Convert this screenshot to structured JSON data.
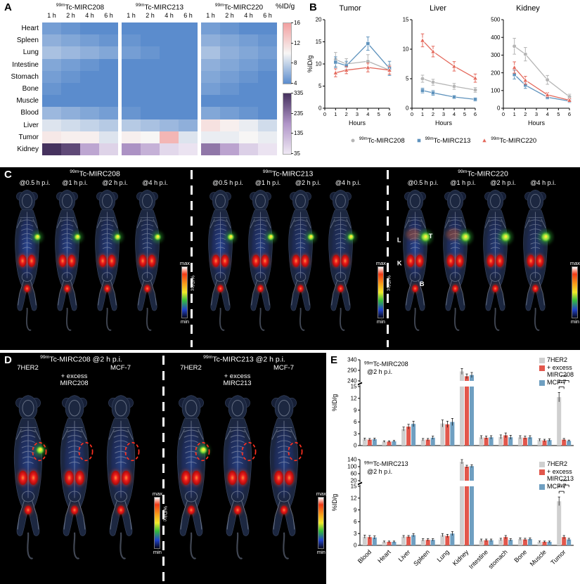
{
  "panels": {
    "A": {
      "label": "A"
    },
    "B": {
      "label": "B"
    },
    "C": {
      "label": "C"
    },
    "D": {
      "label": "D"
    },
    "E": {
      "label": "E"
    }
  },
  "colors": {
    "mirc208": "#b5b5b5",
    "mirc213": "#5f93bd",
    "mirc220": "#e4695c",
    "bar_gray": "#cfcfcf",
    "bar_red": "#e2574c",
    "bar_blue": "#6f9fc1",
    "heat_blue": "#5b8ccd",
    "heat_white": "#f7f6f5",
    "heat_pink": "#f2a0a0",
    "kid_light": "#efe9f4",
    "kid_mid": "#b095c8",
    "kid_dark": "#46325e"
  },
  "panelC": {
    "label": "C",
    "colorbar": {
      "top": "max",
      "bottom": "min",
      "unit": "%ID/cc"
    },
    "sections": [
      {
        "title": "99mTc-MIRC208",
        "timepoints": [
          "@0.5 h p.i.",
          "@1 h p.i.",
          "@2 h p.i.",
          "@4 h p.i."
        ]
      },
      {
        "title": "99mTc-MIRC213",
        "timepoints": [
          "@0.5 h p.i.",
          "@1 h p.i.",
          "@2 h p.i.",
          "@4 h p.i."
        ]
      },
      {
        "title": "99mTc-MIRC220",
        "timepoints": [
          "@0.5 h p.i.",
          "@1 h p.i.",
          "@2 h p.i.",
          "@4 h p.i."
        ],
        "annotations": [
          "L",
          "T",
          "K",
          "B"
        ]
      }
    ]
  },
  "panelD": {
    "label": "D",
    "colorbar": {
      "top": "max",
      "bottom": "min",
      "unit": "%ID/cc"
    },
    "sections": [
      {
        "title": "99mTc-MIRC208 @2 h p.i.",
        "columns": [
          "7HER2",
          "+ excess MIRC208",
          "MCF-7"
        ]
      },
      {
        "title": "99mTc-MIRC213 @2 h p.i.",
        "columns": [
          "7HER2",
          "+ excess MIRC213",
          "MCF-7"
        ]
      }
    ]
  },
  "chart_data": [
    {
      "id": "A-heatmap",
      "type": "heatmap",
      "unit": "%ID/g",
      "col_groups": [
        "99mTc-MIRC208",
        "99mTc-MIRC213",
        "99mTc-MIRC220"
      ],
      "timepoints": [
        "1 h",
        "2 h",
        "4 h",
        "6 h"
      ],
      "rows": [
        "Heart",
        "Spleen",
        "Lung",
        "Intestine",
        "Stomach",
        "Bone",
        "Muscle",
        "Blood",
        "Liver",
        "Tumor",
        "Kidney"
      ],
      "scale_main": {
        "min": 4,
        "max": 16,
        "ticks": [
          16,
          12,
          8,
          4
        ]
      },
      "scale_kidney": {
        "min": 35,
        "max": 335,
        "ticks": [
          335,
          235,
          135,
          35
        ]
      },
      "values": [
        [
          [
            5.0,
            4.5,
            4.0,
            3.5
          ],
          [
            4.0,
            3.5,
            3.0,
            2.5
          ],
          [
            5.0,
            4.5,
            4.0,
            3.5
          ]
        ],
        [
          [
            6.0,
            5.5,
            5.0,
            4.5
          ],
          [
            4.5,
            4.0,
            3.5,
            3.0
          ],
          [
            6.0,
            5.5,
            5.0,
            4.5
          ]
        ],
        [
          [
            7.0,
            6.5,
            6.0,
            5.5
          ],
          [
            5.0,
            4.5,
            4.0,
            3.5
          ],
          [
            7.0,
            6.0,
            5.5,
            5.0
          ]
        ],
        [
          [
            5.5,
            5.0,
            4.5,
            4.0
          ],
          [
            4.0,
            3.5,
            3.5,
            3.0
          ],
          [
            6.0,
            5.5,
            5.0,
            4.5
          ]
        ],
        [
          [
            5.0,
            4.5,
            4.0,
            4.0
          ],
          [
            3.5,
            3.5,
            3.0,
            3.0
          ],
          [
            5.5,
            5.0,
            4.5,
            4.0
          ]
        ],
        [
          [
            4.5,
            4.0,
            4.0,
            3.5
          ],
          [
            3.5,
            3.0,
            3.0,
            2.5
          ],
          [
            5.0,
            4.5,
            4.0,
            3.5
          ]
        ],
        [
          [
            4.0,
            3.5,
            3.5,
            3.0
          ],
          [
            3.0,
            2.5,
            2.5,
            2.0
          ],
          [
            4.0,
            3.5,
            3.0,
            3.0
          ]
        ],
        [
          [
            6.5,
            6.0,
            5.5,
            5.0
          ],
          [
            4.5,
            4.0,
            3.5,
            3.0
          ],
          [
            5.5,
            5.0,
            4.5,
            4.0
          ]
        ],
        [
          [
            9.0,
            8.5,
            8.0,
            7.5
          ],
          [
            7.5,
            7.0,
            6.5,
            6.0
          ],
          [
            11.5,
            10.5,
            9.5,
            8.5
          ]
        ],
        [
          [
            11.0,
            10.5,
            10.5,
            9.0
          ],
          [
            10.5,
            10.0,
            14.5,
            9.0
          ],
          [
            9.5,
            9.5,
            10.0,
            9.5
          ]
        ],
        [
          [
            335,
            300,
            155,
            75
          ],
          [
            190,
            135,
            65,
            45
          ],
          [
            230,
            160,
            80,
            45
          ]
        ]
      ]
    },
    {
      "id": "B-tumor",
      "type": "line",
      "title": "Tumor",
      "xlabel": "Hours",
      "ylabel": "%ID/g",
      "xlim": [
        0,
        6
      ],
      "xticks": [
        0,
        1,
        2,
        3,
        4,
        5,
        6
      ],
      "ylim": [
        0,
        20
      ],
      "yticks": [
        0,
        5,
        10,
        15,
        20
      ],
      "x": [
        1,
        2,
        4,
        6
      ],
      "series": [
        {
          "name": "99mTc-MIRC208",
          "marker": "circle",
          "color": "#b5b5b5",
          "values": [
            11.0,
            10.0,
            10.6,
            8.6
          ],
          "errors": [
            1.6,
            1.2,
            1.5,
            1.2
          ]
        },
        {
          "name": "99mTc-MIRC213",
          "marker": "square",
          "color": "#5f93bd",
          "values": [
            10.4,
            9.6,
            14.6,
            9.0
          ],
          "errors": [
            1.2,
            1.0,
            1.5,
            1.6
          ]
        },
        {
          "name": "99mTc-MIRC220",
          "marker": "triangle",
          "color": "#e4695c",
          "values": [
            8.0,
            8.6,
            9.2,
            8.6
          ],
          "errors": [
            0.9,
            0.8,
            1.0,
            0.9
          ]
        }
      ]
    },
    {
      "id": "B-liver",
      "type": "line",
      "title": "Liver",
      "xlabel": "Hours",
      "ylabel": "%ID/g",
      "xlim": [
        0,
        6
      ],
      "xticks": [
        0,
        1,
        2,
        3,
        4,
        5,
        6
      ],
      "ylim": [
        0,
        15
      ],
      "yticks": [
        0,
        5,
        10,
        15
      ],
      "x": [
        1,
        2,
        4,
        6
      ],
      "series": [
        {
          "name": "99mTc-MIRC208",
          "marker": "circle",
          "color": "#b5b5b5",
          "values": [
            5.0,
            4.4,
            3.7,
            3.1
          ],
          "errors": [
            0.6,
            0.5,
            0.5,
            0.4
          ]
        },
        {
          "name": "99mTc-MIRC213",
          "marker": "square",
          "color": "#5f93bd",
          "values": [
            3.0,
            2.6,
            1.9,
            1.5
          ],
          "errors": [
            0.4,
            0.4,
            0.3,
            0.3
          ]
        },
        {
          "name": "99mTc-MIRC220",
          "marker": "triangle",
          "color": "#e4695c",
          "values": [
            11.5,
            9.6,
            7.1,
            5.1
          ],
          "errors": [
            1.1,
            0.9,
            0.8,
            0.7
          ]
        }
      ]
    },
    {
      "id": "B-kidney",
      "type": "line",
      "title": "Kidney",
      "xlabel": "Hours",
      "ylabel": "%ID/g",
      "xlim": [
        0,
        6
      ],
      "xticks": [
        0,
        1,
        2,
        3,
        4,
        5,
        6
      ],
      "ylim": [
        0,
        500
      ],
      "yticks": [
        0,
        100,
        200,
        300,
        400,
        500
      ],
      "x": [
        1,
        2,
        4,
        6
      ],
      "series": [
        {
          "name": "99mTc-MIRC208",
          "marker": "circle",
          "color": "#b5b5b5",
          "values": [
            350,
            305,
            160,
            65
          ],
          "errors": [
            45,
            38,
            25,
            14
          ]
        },
        {
          "name": "99mTc-MIRC213",
          "marker": "square",
          "color": "#5f93bd",
          "values": [
            190,
            130,
            62,
            40
          ],
          "errors": [
            25,
            18,
            10,
            8
          ]
        },
        {
          "name": "99mTc-MIRC220",
          "marker": "triangle",
          "color": "#e4695c",
          "values": [
            230,
            158,
            76,
            45
          ],
          "errors": [
            32,
            22,
            12,
            9
          ]
        }
      ]
    },
    {
      "id": "E-mirc208",
      "type": "bar",
      "title": "99mTc-MIRC208 @2 h p.i.",
      "ylabel": "%ID/g",
      "categories": [
        "Blood",
        "Heart",
        "Liver",
        "Spleen",
        "Lung",
        "Kidney",
        "Intestine",
        "stomach",
        "Bone",
        "Muscle",
        "Tumor"
      ],
      "axis_break": {
        "lower_lim": [
          0,
          15
        ],
        "lower_ticks": [
          0,
          3,
          6,
          9,
          12,
          15
        ],
        "upper_lim": [
          240,
          340
        ],
        "upper_ticks": [
          240,
          290,
          340
        ]
      },
      "series": [
        {
          "name": "7HER2",
          "color": "#cfcfcf",
          "values": [
            1.6,
            1.0,
            4.2,
            1.5,
            5.6,
            285,
            2.1,
            2.2,
            2.1,
            1.4,
            12.3
          ],
          "errors": [
            0.3,
            0.2,
            0.5,
            0.3,
            0.9,
            14,
            0.4,
            0.5,
            0.4,
            0.3,
            1.2
          ]
        },
        {
          "name": "+ excess MIRC208",
          "color": "#e2574c",
          "values": [
            1.5,
            1.0,
            4.8,
            1.5,
            5.4,
            262,
            2.0,
            2.6,
            2.0,
            1.3,
            1.5
          ],
          "errors": [
            0.3,
            0.2,
            0.6,
            0.3,
            0.8,
            11,
            0.4,
            0.6,
            0.4,
            0.3,
            0.3
          ]
        },
        {
          "name": "MCF-7",
          "color": "#6f9fc1",
          "values": [
            1.6,
            1.1,
            5.5,
            2.0,
            6.0,
            268,
            2.1,
            2.1,
            2.1,
            1.4,
            1.2
          ],
          "errors": [
            0.3,
            0.2,
            0.7,
            0.4,
            0.9,
            12,
            0.4,
            0.5,
            0.4,
            0.3,
            0.2
          ]
        }
      ],
      "significance": {
        "category": "Tumor",
        "labels": [
          "***",
          "***"
        ]
      }
    },
    {
      "id": "E-mirc213",
      "type": "bar",
      "title": "99mTc-MIRC213 @2 h p.i.",
      "ylabel": "%ID/g",
      "categories": [
        "Blood",
        "Heart",
        "Liver",
        "Spleen",
        "Lung",
        "Kidney",
        "Intestine",
        "stomach",
        "Bone",
        "Muscle",
        "Tumor"
      ],
      "axis_break": {
        "lower_lim": [
          0,
          15
        ],
        "lower_ticks": [
          0,
          3,
          6,
          9,
          12,
          15
        ],
        "upper_lim": [
          20,
          140
        ],
        "upper_ticks": [
          20,
          60,
          100,
          140
        ]
      },
      "series": [
        {
          "name": "7HER2",
          "color": "#cfcfcf",
          "values": [
            2.2,
            0.9,
            2.2,
            1.4,
            2.6,
            128,
            1.3,
            1.5,
            1.6,
            0.9,
            11.2
          ],
          "errors": [
            0.4,
            0.2,
            0.3,
            0.3,
            0.4,
            12,
            0.3,
            0.3,
            0.3,
            0.2,
            1.1
          ]
        },
        {
          "name": "+ excess MIRC213",
          "color": "#e2574c",
          "values": [
            2.1,
            0.9,
            2.2,
            1.4,
            2.4,
            100,
            1.3,
            2.1,
            1.5,
            0.9,
            2.1
          ],
          "errors": [
            0.4,
            0.2,
            0.3,
            0.3,
            0.4,
            8,
            0.3,
            0.4,
            0.3,
            0.2,
            0.4
          ]
        },
        {
          "name": "MCF-7",
          "color": "#6f9fc1",
          "values": [
            2.0,
            0.9,
            2.6,
            1.4,
            3.0,
            103,
            1.3,
            1.4,
            1.6,
            0.9,
            1.5
          ],
          "errors": [
            0.4,
            0.2,
            0.4,
            0.3,
            0.5,
            8,
            0.3,
            0.3,
            0.3,
            0.2,
            0.3
          ]
        }
      ],
      "significance": {
        "category": "Tumor",
        "labels": [
          "***",
          "***"
        ]
      }
    }
  ]
}
